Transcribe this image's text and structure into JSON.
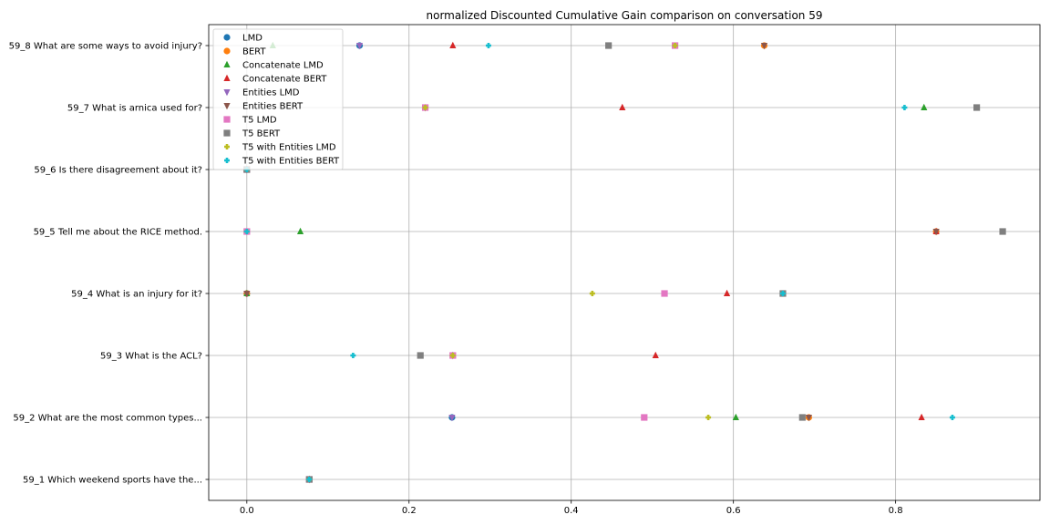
{
  "chart_data": {
    "type": "scatter",
    "title": "normalized Discounted Cumulative Gain comparison on conversation 59",
    "xlabel": "",
    "ylabel": "",
    "xlim": [
      -0.047,
      0.978
    ],
    "xticks": [
      "0.0",
      "0.2",
      "0.4",
      "0.6",
      "0.8"
    ],
    "grid": true,
    "legend_position": "top-left",
    "categories": [
      "59_1 Which weekend sports have the...",
      "59_2 What are the most common types...",
      "59_3 What is the ACL?",
      "59_4 What is an injury for it?",
      "59_5 Tell me about the RICE method.",
      "59_6 Is there disagreement about it?",
      "59_7 What is arnica used for?",
      "59_8 What are some ways to avoid injury?"
    ],
    "series": [
      {
        "name": "LMD",
        "marker": "circle",
        "color": "#1f77b4",
        "values": [
          0.077,
          0.253,
          0.254,
          0.0,
          0.0,
          0.0,
          0.22,
          0.139
        ]
      },
      {
        "name": "BERT",
        "marker": "circle",
        "color": "#ff7f0e",
        "values": [
          0.077,
          0.693,
          0.254,
          0.0,
          0.85,
          0.0,
          0.22,
          0.638
        ]
      },
      {
        "name": "Concatenate LMD",
        "marker": "triangle-up",
        "color": "#2ca02c",
        "values": [
          0.077,
          0.603,
          0.254,
          0.0,
          0.066,
          0.0,
          0.835,
          0.032
        ]
      },
      {
        "name": "Concatenate BERT",
        "marker": "triangle-up",
        "color": "#d62728",
        "values": [
          0.077,
          0.832,
          0.504,
          0.592,
          0.85,
          0.0,
          0.463,
          0.254
        ]
      },
      {
        "name": "Entities LMD",
        "marker": "triangle-down",
        "color": "#9467bd",
        "values": [
          0.077,
          0.253,
          0.254,
          0.0,
          0.0,
          0.0,
          0.22,
          0.139
        ]
      },
      {
        "name": "Entities BERT",
        "marker": "triangle-down",
        "color": "#8c564b",
        "values": [
          0.077,
          0.693,
          0.254,
          0.0,
          0.85,
          0.0,
          0.22,
          0.638
        ]
      },
      {
        "name": "T5 LMD",
        "marker": "square",
        "color": "#e377c2",
        "values": [
          0.077,
          0.49,
          0.254,
          0.515,
          0.0,
          0.0,
          0.22,
          0.528
        ]
      },
      {
        "name": "T5 BERT",
        "marker": "square",
        "color": "#7f7f7f",
        "values": [
          0.077,
          0.685,
          0.214,
          0.661,
          0.932,
          0.0,
          0.9,
          0.446
        ]
      },
      {
        "name": "T5 with Entities LMD",
        "marker": "plus",
        "color": "#bcbd22",
        "values": [
          0.077,
          0.569,
          0.254,
          0.426,
          0.0,
          0.0,
          0.22,
          0.528
        ]
      },
      {
        "name": "T5 with Entities BERT",
        "marker": "plus",
        "color": "#17becf",
        "values": [
          0.077,
          0.87,
          0.131,
          0.661,
          0.0,
          0.0,
          0.811,
          0.298
        ]
      }
    ]
  }
}
